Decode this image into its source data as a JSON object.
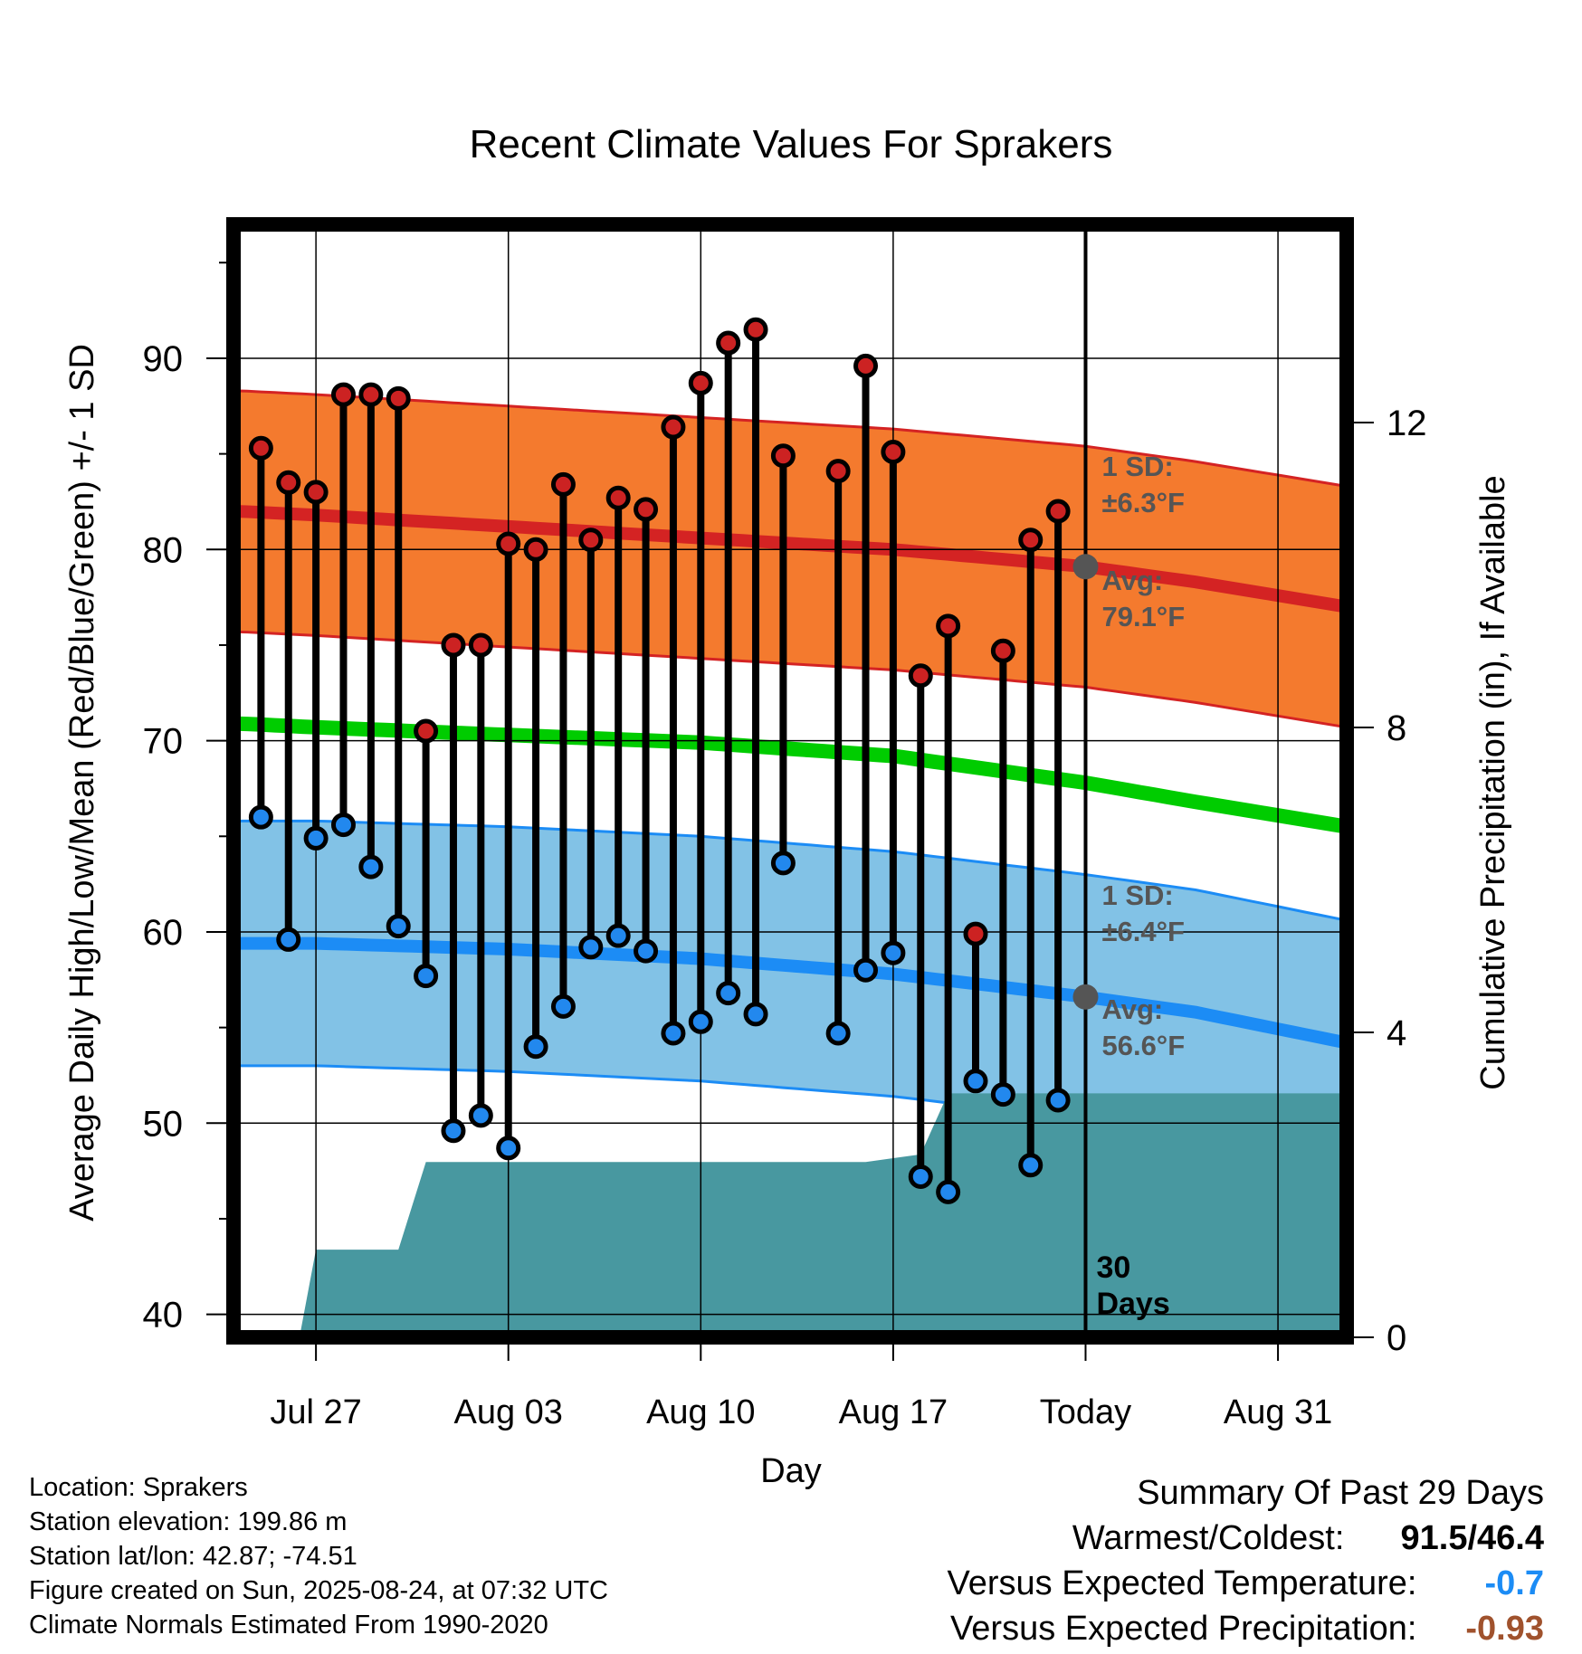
{
  "chart_data": {
    "type": "line",
    "title": "Recent Climate Values For Sprakers",
    "xlabel": "Day",
    "ylabel": "Average Daily High/Low/Mean (Red/Blue/Green) +/- 1 SD",
    "y2label": "Cumulative Precipitation (in), If Available",
    "x_tick_labels": [
      "Jul 27",
      "Aug 03",
      "Aug 10",
      "Aug 17",
      "Today",
      "Aug 31"
    ],
    "x_tick_days": [
      0,
      7,
      14,
      21,
      28,
      35
    ],
    "xlim": [
      -3.0,
      37.5
    ],
    "ylim": [
      38.8,
      97.0
    ],
    "y_ticks": [
      40,
      50,
      60,
      70,
      80,
      90
    ],
    "y2lim": [
      0,
      14.6
    ],
    "y2_ticks": [
      0,
      4,
      8,
      12
    ],
    "days": [
      -2,
      -1,
      0,
      1,
      2,
      3,
      4,
      5,
      6,
      7,
      8,
      9,
      10,
      11,
      12,
      13,
      14,
      15,
      16,
      17,
      18,
      19,
      20,
      21,
      22,
      23,
      24,
      25,
      26,
      27
    ],
    "observed": {
      "high": [
        85.3,
        83.5,
        83.0,
        88.1,
        88.1,
        87.9,
        70.5,
        75.0,
        75.0,
        80.3,
        80.0,
        83.4,
        80.5,
        82.7,
        82.1,
        86.4,
        88.7,
        90.8,
        91.5,
        84.9,
        null,
        84.1,
        89.6,
        85.1,
        73.4,
        76.0,
        59.9,
        74.7,
        80.5,
        82.0
      ],
      "low": [
        66.0,
        59.6,
        64.9,
        65.6,
        63.4,
        60.3,
        57.7,
        49.6,
        50.4,
        48.7,
        54.0,
        56.1,
        59.2,
        59.8,
        59.0,
        54.7,
        55.3,
        56.8,
        55.7,
        63.6,
        null,
        54.7,
        58.0,
        58.9,
        47.2,
        46.4,
        52.2,
        51.5,
        47.8,
        51.2
      ]
    },
    "normals": {
      "day": [
        -2.8,
        0,
        7,
        14,
        21,
        28,
        32,
        37.5
      ],
      "high": [
        82.0,
        81.8,
        81.2,
        80.6,
        80.0,
        79.1,
        78.3,
        77.0
      ],
      "high_sd": 6.3,
      "low": [
        59.4,
        59.4,
        59.1,
        58.6,
        57.8,
        56.6,
        55.8,
        54.2
      ],
      "low_sd": 6.4,
      "mean": [
        70.9,
        70.7,
        70.3,
        69.9,
        69.2,
        67.8,
        66.8,
        65.5
      ]
    },
    "precip": {
      "day": [
        -2.8,
        -0.6,
        0,
        3,
        4,
        14,
        20,
        21,
        22,
        23,
        37.5
      ],
      "cum": [
        0,
        0,
        1.15,
        1.15,
        2.3,
        2.3,
        2.3,
        2.35,
        2.4,
        3.2,
        3.2
      ]
    },
    "today_day": 28,
    "annotations": {
      "high_sd": [
        "1 SD:",
        "±6.3°F"
      ],
      "high_avg": [
        "Avg:",
        "79.1°F"
      ],
      "low_sd": [
        "1 SD:",
        "±6.4°F"
      ],
      "low_avg": [
        "Avg:",
        "56.6°F"
      ],
      "days": [
        "30",
        "Days"
      ]
    },
    "colors": {
      "high_band": "#f47a2e",
      "high_line": "#d42323",
      "low_band": "#82c2e6",
      "low_line": "#1c8cf5",
      "mean_line": "#00cc00",
      "precip": "#4898a0",
      "high_dot": "#cc2222",
      "low_dot": "#2288ee",
      "today_dot": "#555555",
      "annotation": "#555555"
    }
  },
  "footer": {
    "location": "Location: Sprakers",
    "elevation": "Station elevation: 199.86 m",
    "latlon": "Station lat/lon: 42.87; -74.51",
    "created": "Figure created on Sun, 2025-08-24, at 07:32 UTC",
    "normals": "Climate Normals Estimated From 1990-2020"
  },
  "summary": {
    "title": "Summary Of Past 29 Days",
    "warmest_label": "Warmest/Coldest:",
    "warmest_value": "91.5/46.4",
    "temp_label": "Versus Expected Temperature:",
    "temp_value": "-0.7",
    "temp_color": "#1c8cf5",
    "precip_label": "Versus Expected Precipitation:",
    "precip_value": "-0.93",
    "precip_color": "#a0522d"
  }
}
